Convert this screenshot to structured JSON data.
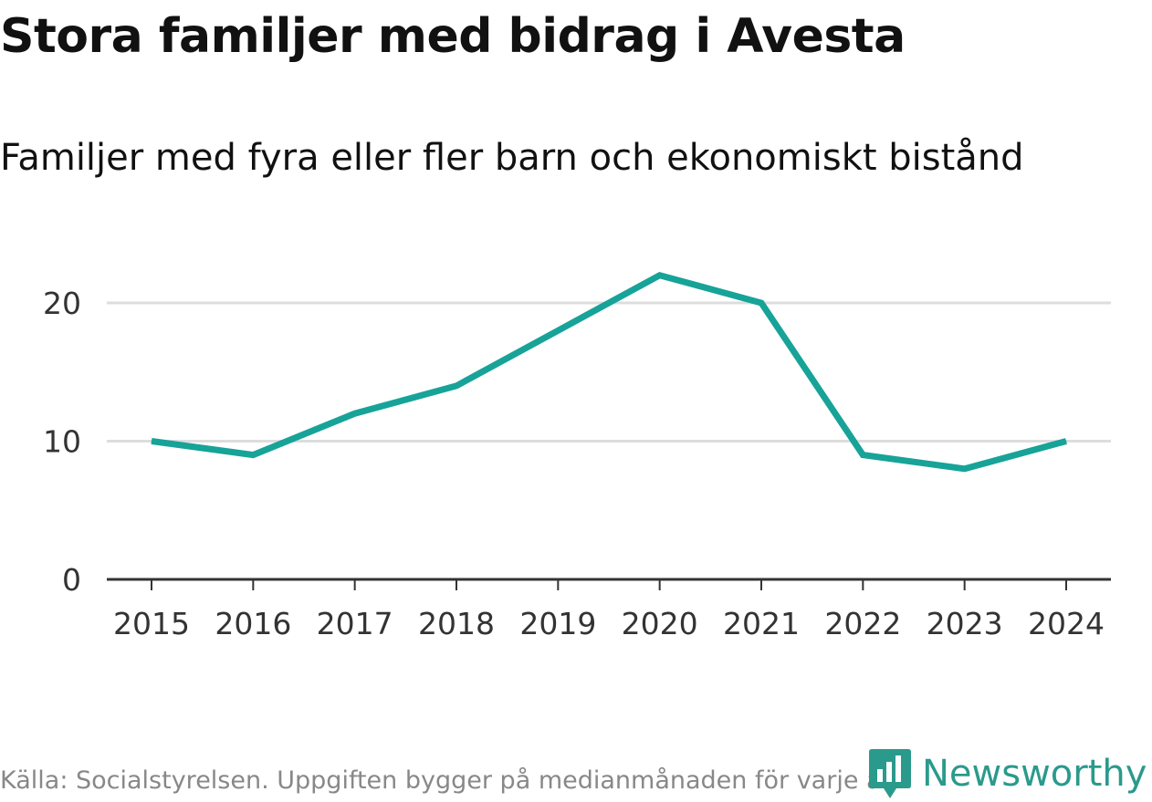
{
  "header": {
    "title": "Stora familjer med bidrag i Avesta",
    "subtitle": "Familjer med fyra eller fler barn och ekonomiskt bistånd"
  },
  "footer": {
    "source": "Källa: Socialstyrelsen. Uppgiften bygger på medianmånaden för varje år",
    "brand": "Newsworthy"
  },
  "colors": {
    "line": "#17a398",
    "grid": "#dddddd",
    "axis": "#333333",
    "brand": "#2a9a8c"
  },
  "icons": {
    "brand_logo": "bar-chart-speech-bubble-icon"
  },
  "chart_data": {
    "type": "line",
    "title": "Stora familjer med bidrag i Avesta",
    "subtitle": "Familjer med fyra eller fler barn och ekonomiskt bistånd",
    "xlabel": "",
    "ylabel": "",
    "categories": [
      "2015",
      "2016",
      "2017",
      "2018",
      "2019",
      "2020",
      "2021",
      "2022",
      "2023",
      "2024"
    ],
    "series": [
      {
        "values": [
          10,
          9,
          12,
          14,
          18,
          22,
          20,
          9,
          8,
          10
        ]
      }
    ],
    "ylim": [
      0,
      25
    ],
    "yticks": [
      0,
      10,
      20
    ],
    "grid": true,
    "legend": "none"
  }
}
